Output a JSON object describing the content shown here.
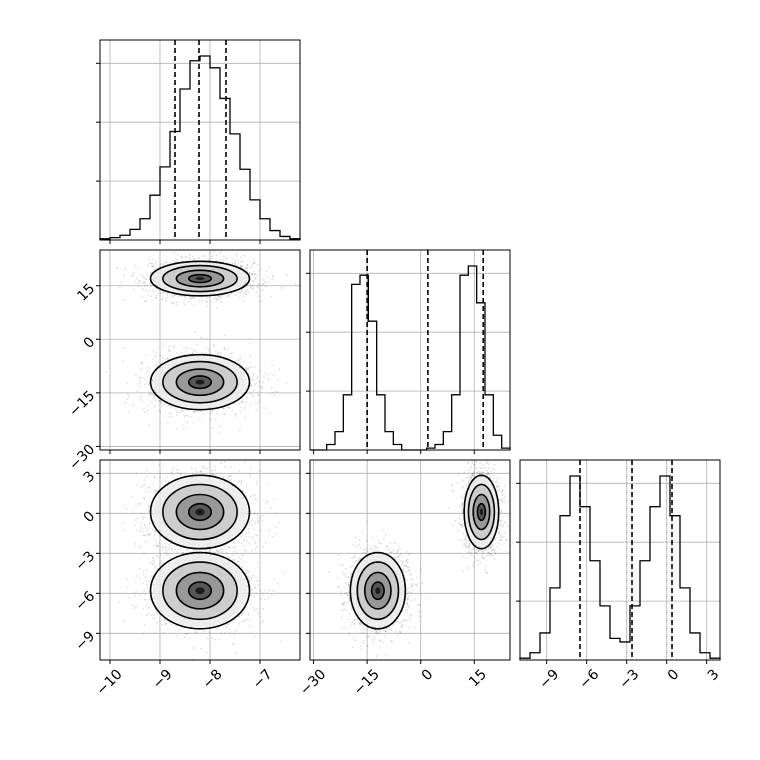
{
  "chart_data": {
    "type": "scatter",
    "title": "",
    "parameters": [
      {
        "ticks": [
          -10,
          -9,
          -8,
          -7
        ],
        "tick_labels": [
          "−10",
          "−9",
          "−8",
          "−7"
        ],
        "range": [
          -10.2,
          -6.2
        ],
        "quantiles": [
          -8.7,
          -8.22,
          -7.68
        ],
        "histogram": [
          1,
          2,
          4,
          9,
          18,
          38,
          62,
          92,
          128,
          152,
          156,
          146,
          120,
          90,
          60,
          34,
          18,
          8,
          3,
          1
        ]
      },
      {
        "ticks": [
          -30,
          -15,
          0,
          15
        ],
        "tick_labels": [
          "−30",
          "−15",
          "0",
          "15"
        ],
        "range": [
          -31,
          25
        ],
        "quantiles": [
          -15,
          2,
          17.5
        ],
        "histogram": [
          0,
          0,
          3,
          10,
          30,
          90,
          95,
          70,
          30,
          10,
          3,
          0,
          0,
          0,
          1,
          3,
          10,
          30,
          95,
          100,
          80,
          30,
          8,
          1
        ]
      },
      {
        "ticks": [
          -9,
          -6,
          -3,
          0,
          3
        ],
        "tick_labels": [
          "−9",
          "−6",
          "−3",
          "0",
          "3"
        ],
        "range": [
          -11,
          4
        ],
        "quantiles": [
          -6.5,
          -2.6,
          0.4
        ],
        "histogram": [
          1,
          4,
          15,
          40,
          80,
          102,
          85,
          55,
          30,
          12,
          10,
          30,
          55,
          85,
          102,
          80,
          40,
          15,
          4,
          1
        ]
      }
    ],
    "clusters": [
      {
        "mean": [
          -8.2,
          -12,
          -5.8
        ],
        "sd": [
          0.45,
          3.5,
          1.3
        ]
      },
      {
        "mean": [
          -8.2,
          17,
          0.1
        ],
        "sd": [
          0.45,
          2.2,
          1.25
        ]
      }
    ]
  }
}
